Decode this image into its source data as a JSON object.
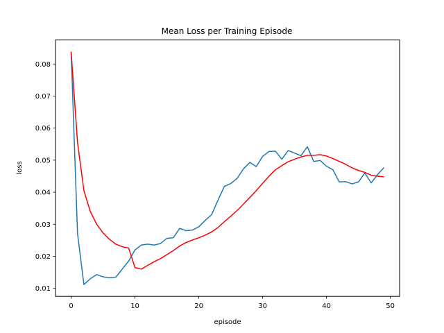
{
  "chart_data": {
    "type": "line",
    "title": "Mean Loss per Training Episode",
    "xlabel": "episode",
    "ylabel": "loss",
    "xlim": [
      -2.45,
      51.45
    ],
    "ylim": [
      0.0075,
      0.0875
    ],
    "xticks": [
      0,
      10,
      20,
      30,
      40,
      50
    ],
    "yticks": [
      0.01,
      0.02,
      0.03,
      0.04,
      0.05,
      0.06,
      0.07,
      0.08
    ],
    "xtick_labels": [
      "0",
      "10",
      "20",
      "30",
      "40",
      "50"
    ],
    "ytick_labels": [
      "0.01",
      "0.02",
      "0.03",
      "0.04",
      "0.05",
      "0.06",
      "0.07",
      "0.08"
    ],
    "grid": false,
    "legend": "none",
    "series": [
      {
        "color": "#1f77b4",
        "x": [
          0,
          1,
          2,
          3,
          4,
          5,
          6,
          7,
          8,
          9,
          10,
          11,
          12,
          13,
          14,
          15,
          16,
          17,
          18,
          19,
          20,
          21,
          22,
          23,
          24,
          25,
          26,
          27,
          28,
          29,
          30,
          31,
          32,
          33,
          34,
          35,
          36,
          37,
          38,
          39,
          40,
          41,
          42,
          43,
          44,
          45,
          46,
          47,
          48,
          49
        ],
        "y": [
          0.0838,
          0.0271,
          0.0112,
          0.013,
          0.0143,
          0.0136,
          0.0133,
          0.0135,
          0.016,
          0.0185,
          0.022,
          0.0235,
          0.0238,
          0.0235,
          0.024,
          0.0256,
          0.0258,
          0.0287,
          0.028,
          0.0282,
          0.0292,
          0.0312,
          0.033,
          0.0375,
          0.0418,
          0.0427,
          0.0443,
          0.0473,
          0.0493,
          0.048,
          0.0512,
          0.0527,
          0.0528,
          0.0503,
          0.053,
          0.0522,
          0.0514,
          0.0542,
          0.0496,
          0.0499,
          0.0481,
          0.047,
          0.0432,
          0.0433,
          0.0426,
          0.0432,
          0.046,
          0.0429,
          0.0455,
          0.0477
        ]
      },
      {
        "color": "#ff0000",
        "x": [
          0,
          1,
          2,
          3,
          4,
          5,
          6,
          7,
          8,
          9,
          10,
          11,
          12,
          13,
          14,
          15,
          16,
          17,
          18,
          19,
          20,
          21,
          22,
          23,
          24,
          25,
          26,
          27,
          28,
          29,
          30,
          31,
          32,
          33,
          34,
          35,
          36,
          37,
          38,
          39,
          40,
          41,
          42,
          43,
          44,
          45,
          46,
          47,
          48,
          49
        ],
        "y": [
          0.0838,
          0.0555,
          0.0405,
          0.034,
          0.03,
          0.0273,
          0.0253,
          0.0238,
          0.023,
          0.0226,
          0.0165,
          0.016,
          0.0172,
          0.0183,
          0.0193,
          0.0205,
          0.0218,
          0.0232,
          0.0243,
          0.0251,
          0.0258,
          0.0266,
          0.0276,
          0.029,
          0.0308,
          0.0325,
          0.0343,
          0.0363,
          0.0384,
          0.0405,
          0.0428,
          0.045,
          0.047,
          0.0483,
          0.0495,
          0.0503,
          0.051,
          0.0515,
          0.0515,
          0.0517,
          0.0513,
          0.0505,
          0.0496,
          0.0487,
          0.0476,
          0.0468,
          0.0462,
          0.0453,
          0.045,
          0.0448
        ]
      }
    ]
  }
}
